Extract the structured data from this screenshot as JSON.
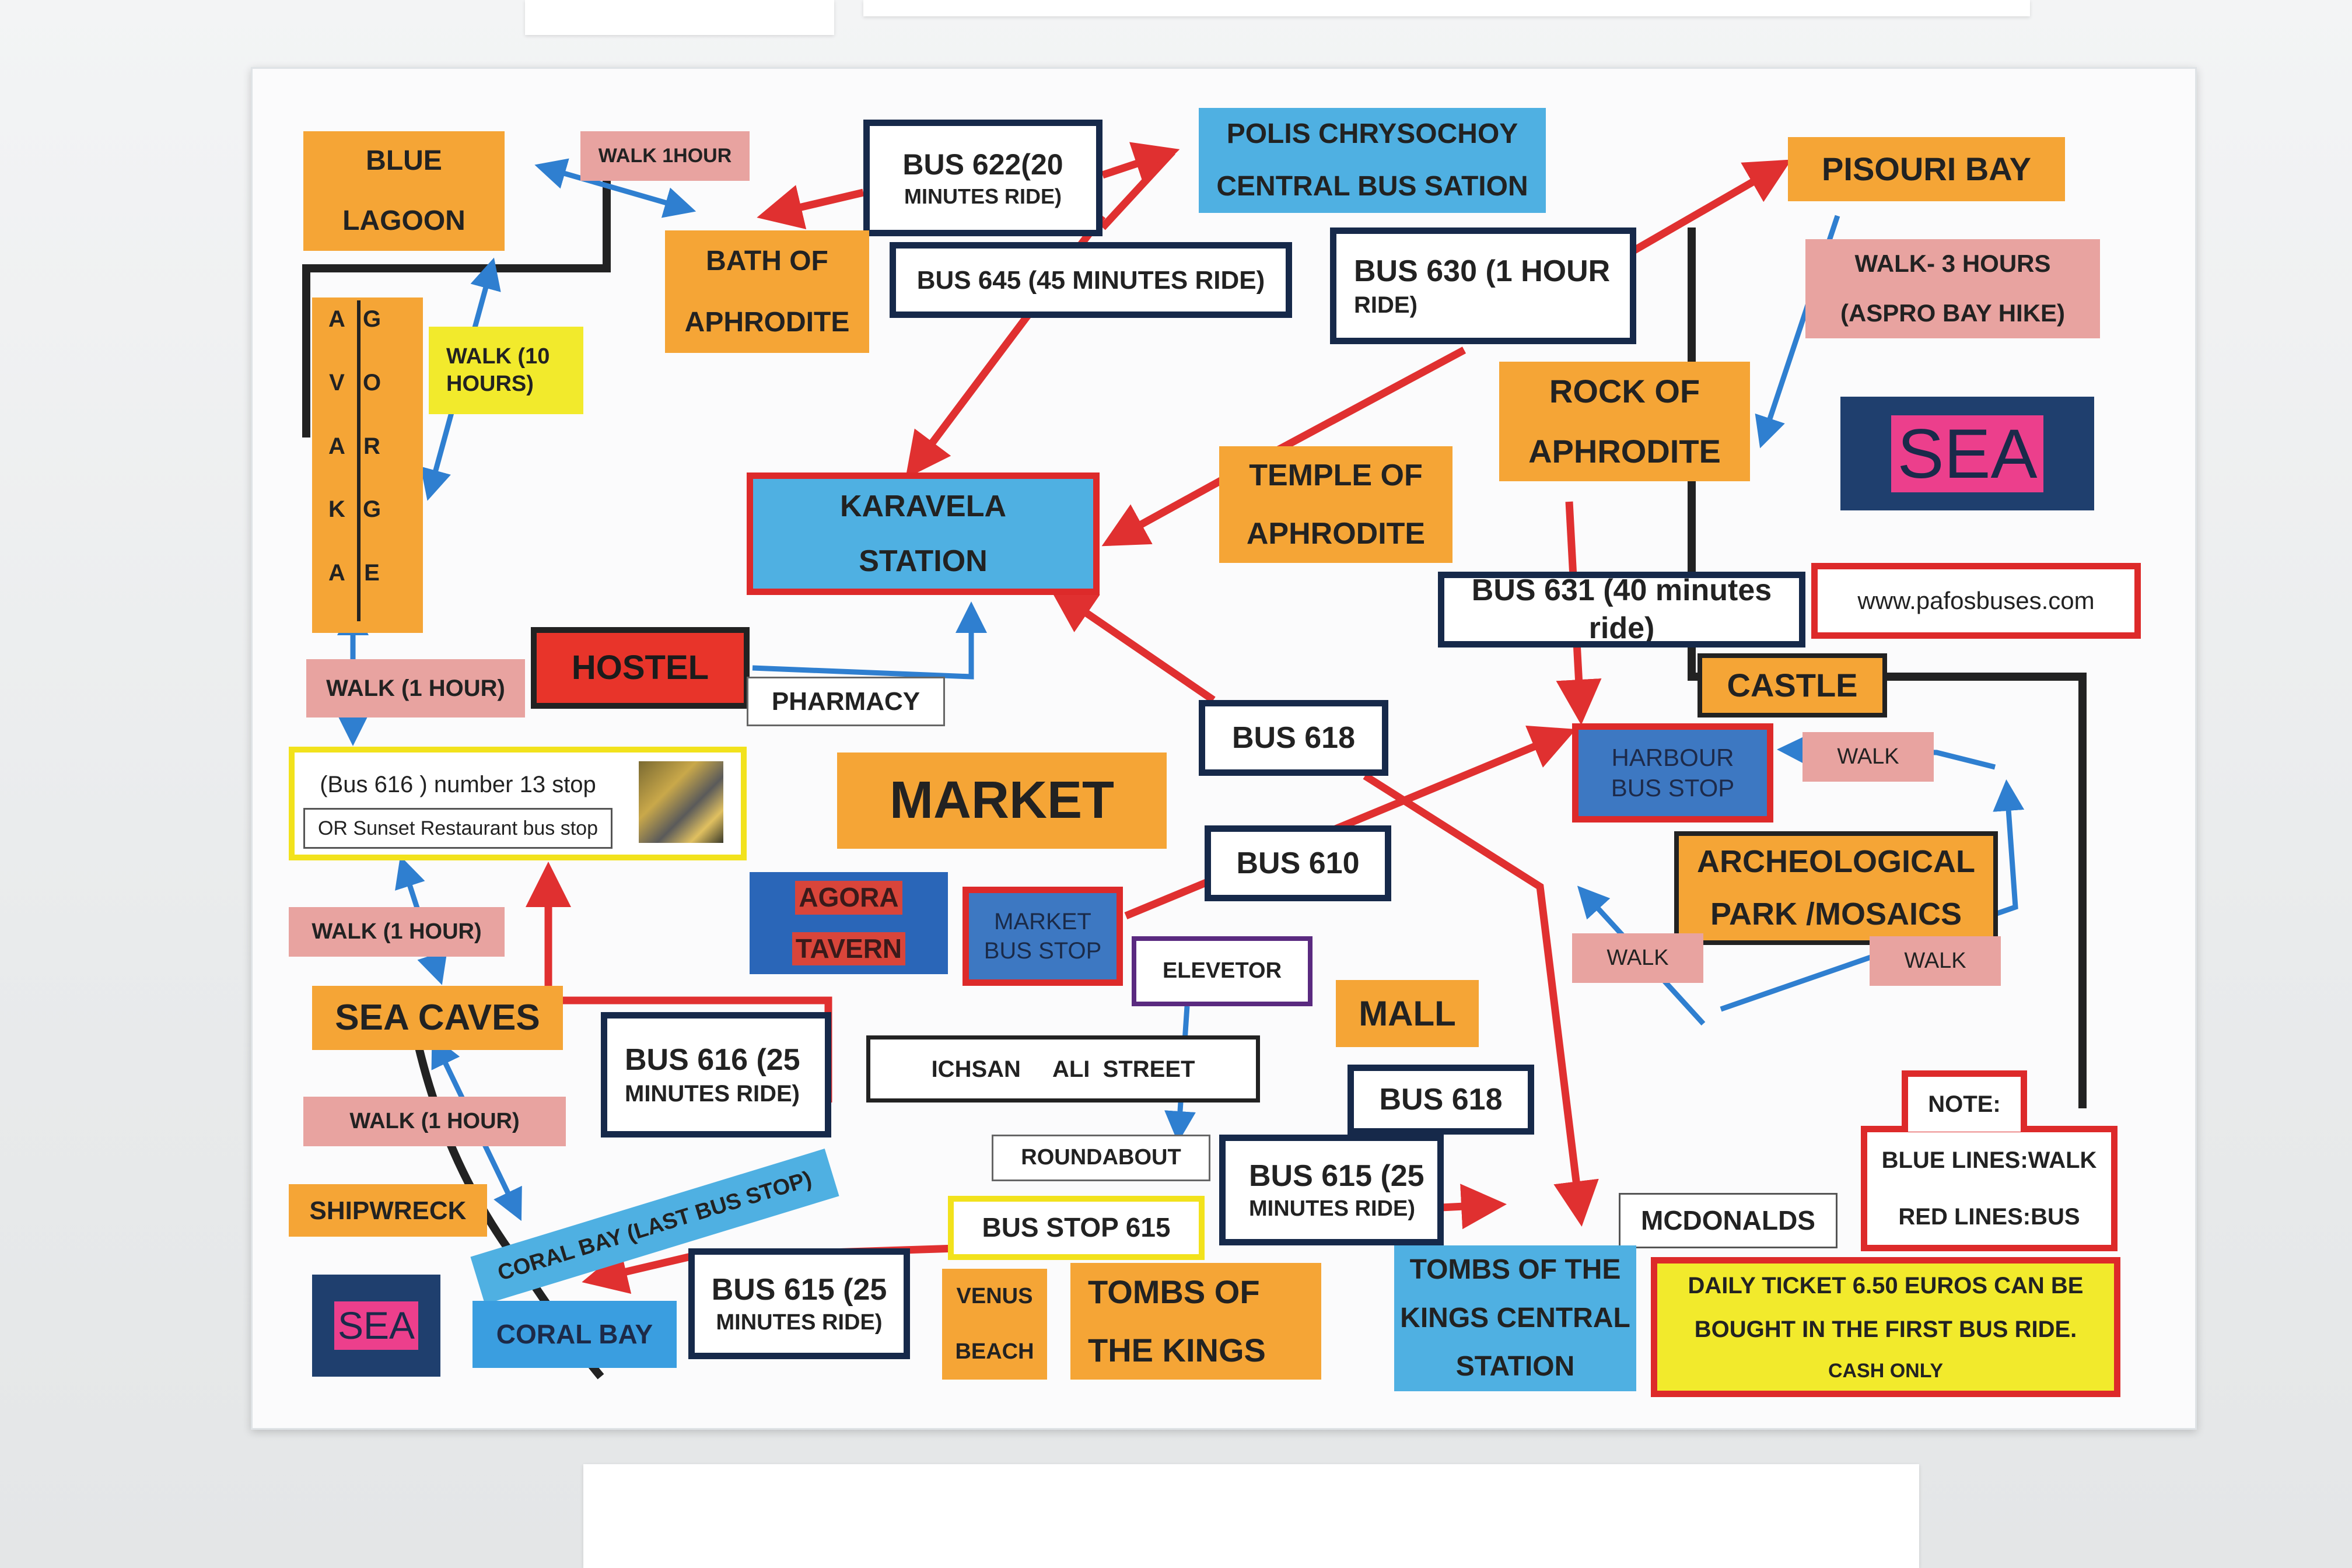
{
  "map": {
    "blue_lagoon": [
      "BLUE",
      "LAGOON"
    ],
    "walk_1hour_top": "WALK 1HOUR",
    "bus_622": [
      "BUS 622(20",
      "MINUTES RIDE)"
    ],
    "polis": [
      "POLIS CHRYSOCHOY",
      "CENTRAL BUS SATION"
    ],
    "pisouri": "PISOURI BAY",
    "bath": [
      "BATH OF",
      "APHRODITE"
    ],
    "bus_645": "BUS 645 (45 MINUTES RIDE)",
    "bus_630": [
      "BUS 630 (1 HOUR",
      "RIDE)"
    ],
    "walk_3hours": [
      "WALK- 3 HOURS",
      "(ASPRO BAY HIKE)"
    ],
    "avakas_letters": [
      "A",
      "V",
      "A",
      "K",
      "A"
    ],
    "gorge_letters": [
      "G",
      "O",
      "R",
      "G",
      "E"
    ],
    "walk_10hours": [
      "WALK (10",
      "HOURS)"
    ],
    "rock": [
      "ROCK OF",
      "APHRODITE"
    ],
    "sea_top": "SEA",
    "karavela": [
      "KARAVELA",
      "STATION"
    ],
    "temple": [
      "TEMPLE OF",
      "APHRODITE"
    ],
    "bus_631": "BUS 631 (40 minutes ride)",
    "website": "www.pafosbuses.com",
    "hostel": "HOSTEL",
    "walk_1hour_mid": "WALK (1  HOUR)",
    "pharmacy": "PHARMACY",
    "castle": "CASTLE",
    "bus_618_top": "BUS 618",
    "harbour": [
      "HARBOUR",
      "BUS STOP"
    ],
    "walk_harbour": "WALK",
    "bus_616_stop": "(Bus 616 ) number 13 stop",
    "sunset": "OR Sunset Restaurant bus stop",
    "market": "MARKET",
    "bus_610": "BUS 610",
    "archeological": [
      "ARCHEOLOGICAL",
      "PARK /MOSAICS"
    ],
    "walk_arch_left": "WALK",
    "walk_arch_right": "WALK",
    "agora": [
      "AGORA",
      "TAVERN"
    ],
    "market_bus": [
      "MARKET",
      "BUS STOP"
    ],
    "elevetor": "ELEVETOR",
    "walk_1hour_caves": "WALK (1 HOUR)",
    "mall": "MALL",
    "sea_caves": "SEA CAVES",
    "bus_616": [
      "BUS 616 (25",
      "MINUTES RIDE)"
    ],
    "ichsan": "ICHSAN     ALI  STREET",
    "bus_618_low": "BUS 618",
    "note": "NOTE:",
    "note_blue": "BLUE LINES:WALK",
    "note_red": "RED LINES:BUS",
    "walk_1hour_ship": "WALK (1 HOUR)",
    "roundabout": "ROUNDABOUT",
    "bus_615_right": [
      "BUS 615 (25",
      "MINUTES RIDE)"
    ],
    "shipwreck": "SHIPWRECK",
    "coral_last": "CORAL BAY (LAST BUS STOP)",
    "bus_stop_615": "BUS STOP 615",
    "mcdonalds": "MCDONALDS",
    "bus_615_left": [
      "BUS 615 (25",
      "MINUTES RIDE)"
    ],
    "venus": [
      "VENUS",
      "BEACH"
    ],
    "tombs": [
      "TOMBS OF",
      "THE KINGS"
    ],
    "tombs_station": [
      "TOMBS OF THE",
      "KINGS CENTRAL",
      "STATION"
    ],
    "ticket": [
      "DAILY TICKET 6.50 EUROS CAN BE",
      "BOUGHT IN THE FIRST BUS RIDE.",
      "CASH ONLY"
    ],
    "sea_bottom": "SEA",
    "coral_bay": "CORAL BAY"
  },
  "colors": {
    "orange": "#f5a536",
    "blue": "#4fb0e2",
    "pink": "#e8a3a0",
    "yellow": "#f2ea2c",
    "bus_line": "#e03030",
    "walk_line": "#2f7fd0",
    "navy": "#16294a",
    "sea_pink": "#ec3f8c"
  }
}
